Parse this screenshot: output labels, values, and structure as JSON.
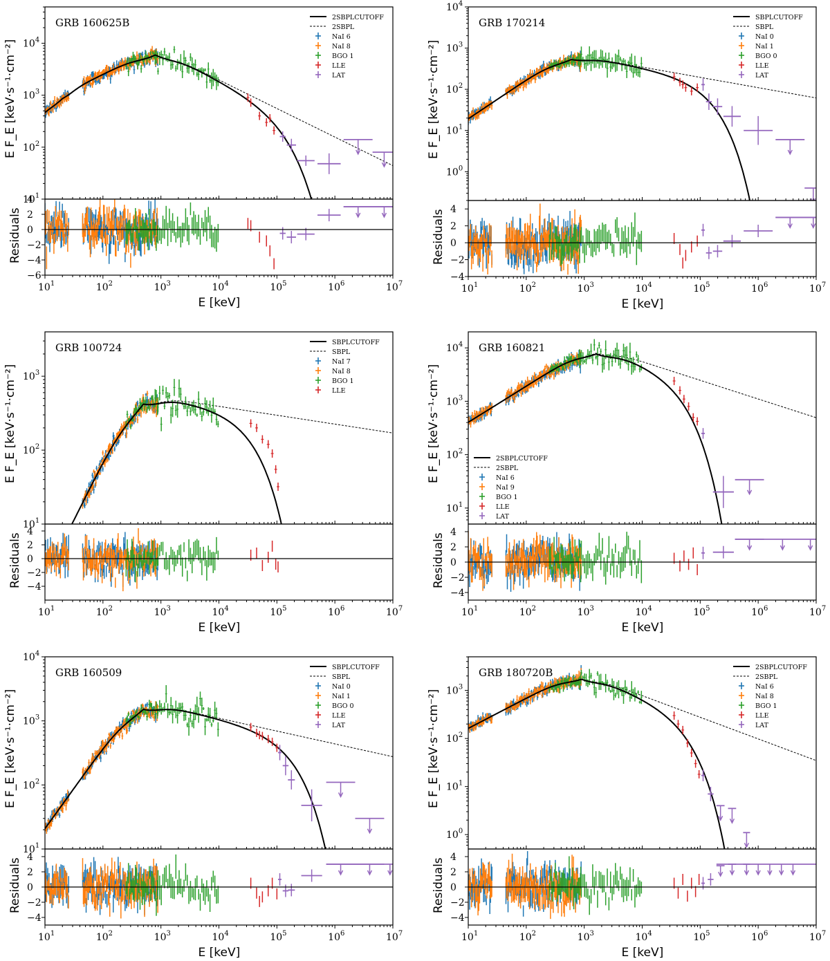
{
  "chart_data": [
    {
      "type": "line",
      "title": "GRB 160625B",
      "xlabel": "E [keV]",
      "ylabel": "E F_E [keV·s⁻¹·cm⁻²]",
      "residual_label": "Residuals",
      "xlim_log10": [
        1,
        7
      ],
      "ylim_log10": [
        1,
        4.7
      ],
      "res_lim": [
        -6,
        4
      ],
      "res_ticks": [
        -6,
        -4,
        -2,
        0,
        2,
        4
      ],
      "legend": {
        "position": "top-right",
        "entries": [
          "2SBPLCUTOFF",
          "2SBPL",
          "NaI 6",
          "NaI 8",
          "BGO 1",
          "LLE",
          "LAT"
        ]
      },
      "model": {
        "ebreak": 20,
        "epeak": 800,
        "peak": 7900,
        "a1": 1.1,
        "a2": 0.55,
        "beta": -0.55,
        "cutoff_log10": 5.08
      },
      "lle": [
        [
          4.55,
          720,
          0.5
        ],
        [
          4.7,
          400,
          -1.0
        ],
        [
          4.82,
          300,
          -1.5
        ],
        [
          4.95,
          210,
          -4.5
        ],
        [
          4.5,
          900,
          0.8
        ],
        [
          4.88,
          360,
          -2.8
        ]
      ],
      "lat": [
        {
          "e": 5.1,
          "y": 160,
          "dx": 0.05,
          "yerr": 0.1,
          "r": -0.5,
          "ul": false
        },
        {
          "e": 5.25,
          "y": 110,
          "dx": 0.08,
          "yerr": 0.12,
          "r": -1.0,
          "ul": false
        },
        {
          "e": 5.5,
          "y": 55,
          "dx": 0.15,
          "yerr": 0.1,
          "r": -0.6,
          "ul": false
        },
        {
          "e": 5.9,
          "y": 48,
          "dx": 0.2,
          "yerr": 0.2,
          "r": 1.9,
          "ul": false
        },
        {
          "e": 6.4,
          "y": 140,
          "dx": 0.25,
          "yerr": 0,
          "r": 3.0,
          "ul": true
        },
        {
          "e": 6.85,
          "y": 80,
          "dx": 0.2,
          "yerr": 0,
          "r": 3.0,
          "ul": true
        }
      ]
    },
    {
      "type": "line",
      "title": "GRB 170214",
      "xlabel": "E [keV]",
      "ylabel": "E F_E [keV·s⁻¹·cm⁻²]",
      "residual_label": "Residuals",
      "xlim_log10": [
        1,
        7
      ],
      "ylim_log10": [
        -0.7,
        4
      ],
      "res_lim": [
        -4,
        5
      ],
      "res_ticks": [
        -4,
        -2,
        0,
        2,
        4
      ],
      "legend": {
        "position": "top-right",
        "entries": [
          "SBPLCUTOFF",
          "SBPL",
          "NaI 0",
          "NaI 1",
          "BGO 0",
          "LLE",
          "LAT"
        ]
      },
      "model": {
        "ebreak": 0,
        "epeak": 600,
        "peak": 700,
        "a1": 0.9,
        "a2": 0.9,
        "beta": -0.25,
        "cutoff_log10": 5.05
      },
      "lle": [
        [
          4.55,
          200,
          0.5
        ],
        [
          4.65,
          150,
          -0.8
        ],
        [
          4.75,
          110,
          -1.5
        ],
        [
          4.85,
          90,
          -0.5
        ],
        [
          4.95,
          110,
          0.2
        ],
        [
          4.7,
          130,
          -2.4
        ]
      ],
      "lat": [
        {
          "e": 5.05,
          "y": 130,
          "dx": 0.03,
          "yerr": 0.15,
          "r": 1.5,
          "ul": false
        },
        {
          "e": 5.15,
          "y": 50,
          "dx": 0.05,
          "yerr": 0.2,
          "r": -1.2,
          "ul": false
        },
        {
          "e": 5.3,
          "y": 38,
          "dx": 0.08,
          "yerr": 0.2,
          "r": -1.0,
          "ul": false
        },
        {
          "e": 5.55,
          "y": 22,
          "dx": 0.15,
          "yerr": 0.25,
          "r": 0.2,
          "ul": false
        },
        {
          "e": 6.0,
          "y": 10,
          "dx": 0.25,
          "yerr": 0.35,
          "r": 1.4,
          "ul": false
        },
        {
          "e": 6.55,
          "y": 6,
          "dx": 0.25,
          "yerr": 0,
          "r": 3.0,
          "ul": true
        },
        {
          "e": 6.95,
          "y": 0.4,
          "dx": 0.15,
          "yerr": 0,
          "r": 3.0,
          "ul": true
        }
      ]
    },
    {
      "type": "line",
      "title": "GRB 100724",
      "xlabel": "E [keV]",
      "ylabel": "E F_E [keV·s⁻¹·cm⁻²]",
      "residual_label": "Residuals",
      "xlim_log10": [
        1,
        7
      ],
      "ylim_log10": [
        1,
        3.6
      ],
      "res_lim": [
        -6,
        5
      ],
      "res_ticks": [
        -4,
        -2,
        0,
        2,
        4
      ],
      "legend": {
        "position": "top-right",
        "entries": [
          "SBPLCUTOFF",
          "SBPL",
          "NaI 7",
          "NaI 8",
          "BGO 1",
          "LLE"
        ]
      },
      "model": {
        "ebreak": 0,
        "epeak": 500,
        "peak": 560,
        "a1": 1.5,
        "a2": 1.5,
        "beta": -0.12,
        "cutoff_log10": 4.55
      },
      "lle": [
        [
          4.55,
          230,
          0.5
        ],
        [
          4.65,
          200,
          0.8
        ],
        [
          4.75,
          140,
          -1.0
        ],
        [
          4.85,
          120,
          0.2
        ],
        [
          4.92,
          90,
          1.8
        ],
        [
          4.98,
          55,
          -0.8
        ],
        [
          5.02,
          32,
          -1.2
        ]
      ],
      "lat": []
    },
    {
      "type": "line",
      "title": "GRB 160821",
      "xlabel": "E [keV]",
      "ylabel": "E F_E [keV·s⁻¹·cm⁻²]",
      "residual_label": "Residuals",
      "xlim_log10": [
        1,
        7
      ],
      "ylim_log10": [
        0.7,
        4.3
      ],
      "res_lim": [
        -5,
        5
      ],
      "res_ticks": [
        -4,
        -2,
        0,
        2,
        4
      ],
      "legend": {
        "position": "bottom-left",
        "entries": [
          "2SBPLCUTOFF",
          "2SBPL",
          "NaI 6",
          "NaI 9",
          "BGO 1",
          "LLE",
          "LAT"
        ]
      },
      "model": {
        "ebreak": 0,
        "epeak": 1600,
        "peak": 10500,
        "a1": 0.65,
        "a2": 0.65,
        "beta": -0.35,
        "cutoff_log10": 4.6
      },
      "lle": [
        [
          4.55,
          2400,
          0.5
        ],
        [
          4.65,
          1600,
          -0.5
        ],
        [
          4.72,
          1100,
          0.8
        ],
        [
          4.8,
          800,
          -0.3
        ],
        [
          4.88,
          500,
          1.2
        ],
        [
          4.95,
          420,
          -1.0
        ]
      ],
      "lat": [
        {
          "e": 5.05,
          "y": 250,
          "dx": 0.03,
          "yerr": 0.1,
          "r": 1.2,
          "ul": false
        },
        {
          "e": 5.4,
          "y": 20,
          "dx": 0.18,
          "yerr": 0.3,
          "r": 1.3,
          "ul": false
        },
        {
          "e": 5.85,
          "y": 34,
          "dx": 0.25,
          "yerr": 0,
          "r": 3.0,
          "ul": true
        },
        {
          "e": 6.42,
          "y": 0,
          "dx": 0.0,
          "yerr": 0,
          "r": 3.0,
          "ul": true
        },
        {
          "e": 6.9,
          "y": 0,
          "dx": 0.0,
          "yerr": 0,
          "r": 3.0,
          "ul": true
        }
      ]
    },
    {
      "type": "line",
      "title": "GRB 160509",
      "xlabel": "E [keV]",
      "ylabel": "E F_E [keV·s⁻¹·cm⁻²]",
      "residual_label": "Residuals",
      "xlim_log10": [
        1,
        7
      ],
      "ylim_log10": [
        1,
        4
      ],
      "res_lim": [
        -5,
        5
      ],
      "res_ticks": [
        -4,
        -2,
        0,
        2,
        4
      ],
      "legend": {
        "position": "top-right",
        "entries": [
          "SBPLCUTOFF",
          "SBPL",
          "NaI 0",
          "NaI 1",
          "BGO 0",
          "LLE",
          "LAT"
        ]
      },
      "model": {
        "ebreak": 0,
        "epeak": 500,
        "peak": 2000,
        "a1": 1.2,
        "a2": 1.2,
        "beta": -0.2,
        "cutoff_log10": 5.25
      },
      "lle": [
        [
          4.55,
          800,
          0.5
        ],
        [
          4.65,
          650,
          -0.8
        ],
        [
          4.75,
          580,
          -1.3
        ],
        [
          4.85,
          520,
          -0.5
        ],
        [
          4.92,
          470,
          0.5
        ],
        [
          5.0,
          380,
          -0.9
        ],
        [
          4.7,
          600,
          -1.9
        ]
      ],
      "lat": [
        {
          "e": 5.05,
          "y": 320,
          "dx": 0.03,
          "yerr": 0.12,
          "r": 1.0,
          "ul": false
        },
        {
          "e": 5.15,
          "y": 200,
          "dx": 0.05,
          "yerr": 0.15,
          "r": -0.5,
          "ul": false
        },
        {
          "e": 5.25,
          "y": 120,
          "dx": 0.06,
          "yerr": 0.15,
          "r": -0.4,
          "ul": false
        },
        {
          "e": 5.6,
          "y": 48,
          "dx": 0.18,
          "yerr": 0.25,
          "r": 1.5,
          "ul": false
        },
        {
          "e": 6.1,
          "y": 110,
          "dx": 0.25,
          "yerr": 0,
          "r": 3.0,
          "ul": true
        },
        {
          "e": 6.6,
          "y": 30,
          "dx": 0.25,
          "yerr": 0,
          "r": 3.0,
          "ul": true
        },
        {
          "e": 6.95,
          "y": 0,
          "dx": 0.0,
          "yerr": 0,
          "r": 3.0,
          "ul": true
        }
      ]
    },
    {
      "type": "line",
      "title": "GRB 180720B",
      "xlabel": "E [keV]",
      "ylabel": "E F_E [keV·s⁻¹·cm⁻²]",
      "residual_label": "Residuals",
      "xlim_log10": [
        1,
        7
      ],
      "ylim_log10": [
        -0.3,
        3.7
      ],
      "res_lim": [
        -5,
        5
      ],
      "res_ticks": [
        -4,
        -2,
        0,
        2,
        4
      ],
      "legend": {
        "position": "top-right",
        "entries": [
          "2SBPLCUTOFF",
          "2SBPL",
          "NaI 6",
          "NaI 8",
          "BGO 1",
          "LLE",
          "LAT"
        ]
      },
      "model": {
        "ebreak": 0,
        "epeak": 900,
        "peak": 2300,
        "a1": 0.6,
        "a2": 0.6,
        "beta": -0.45,
        "cutoff_log10": 4.65
      },
      "lle": [
        [
          4.55,
          300,
          0.5
        ],
        [
          4.62,
          200,
          -0.8
        ],
        [
          4.7,
          150,
          1.0
        ],
        [
          4.78,
          80,
          -1.2
        ],
        [
          4.85,
          50,
          0.5
        ],
        [
          4.92,
          30,
          -0.6
        ],
        [
          4.98,
          18,
          1.0
        ]
      ],
      "lat": [
        {
          "e": 5.05,
          "y": 17,
          "dx": 0.03,
          "yerr": 0.12,
          "r": 0.5,
          "ul": false
        },
        {
          "e": 5.18,
          "y": 7,
          "dx": 0.05,
          "yerr": 0.15,
          "r": 1.0,
          "ul": false
        },
        {
          "e": 5.35,
          "y": 4,
          "dx": 0.07,
          "yerr": 0,
          "r": 2.8,
          "ul": true
        },
        {
          "e": 5.55,
          "y": 3.5,
          "dx": 0.07,
          "yerr": 0,
          "r": 3.0,
          "ul": true
        },
        {
          "e": 5.8,
          "y": 1.1,
          "dx": 0.06,
          "yerr": 0,
          "r": 3.0,
          "ul": true
        },
        {
          "e": 6.0,
          "y": 0,
          "dx": 0.0,
          "yerr": 0,
          "r": 3.0,
          "ul": true
        },
        {
          "e": 6.2,
          "y": 0,
          "dx": 0.0,
          "yerr": 0,
          "r": 3.0,
          "ul": true
        },
        {
          "e": 6.4,
          "y": 0,
          "dx": 0.0,
          "yerr": 0,
          "r": 3.0,
          "ul": true
        },
        {
          "e": 6.6,
          "y": 0,
          "dx": 0.0,
          "yerr": 0,
          "r": 3.0,
          "ul": true
        }
      ]
    }
  ],
  "colors": {
    "nai_a": "#1f77b4",
    "nai_b": "#ff7f0e",
    "bgo": "#2ca02c",
    "lle": "#d62728",
    "lat": "#9467bd",
    "model": "#000000"
  }
}
